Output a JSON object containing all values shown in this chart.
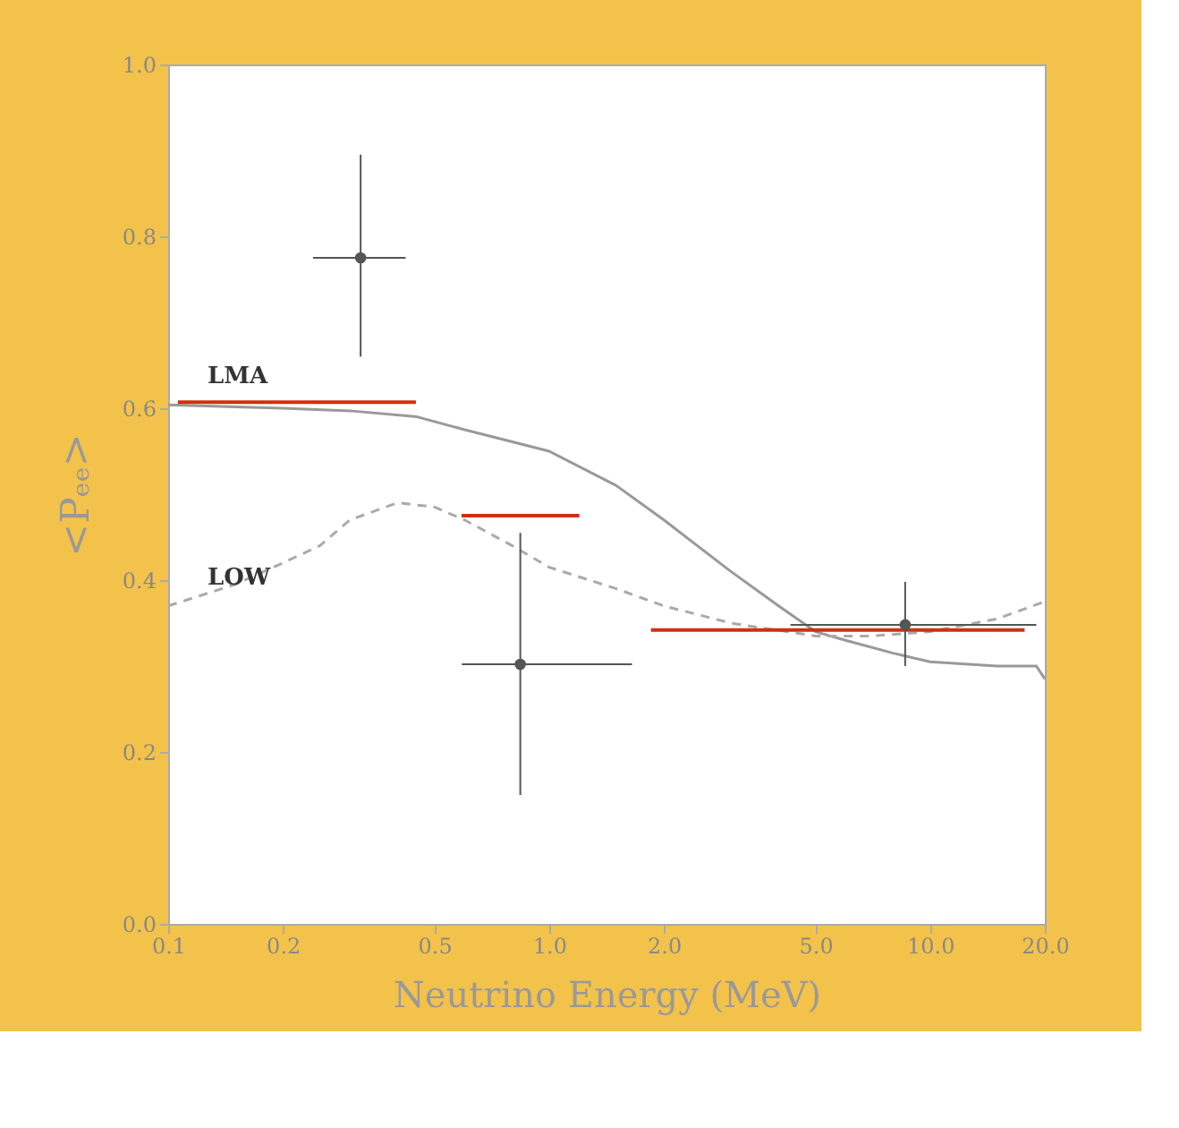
{
  "chart_data": {
    "type": "line",
    "xlabel": "Neutrino Energy (MeV)",
    "ylabel": "<Pₑₑ>",
    "log": "x",
    "grid": false,
    "xlim": [
      0.1,
      20
    ],
    "xticks": [
      0.1,
      0.2,
      0.5,
      {
        "value": 1,
        "label": "1.0"
      },
      {
        "value": 2,
        "label": "2.0"
      },
      {
        "value": 5,
        "label": "5.0"
      },
      {
        "value": 10,
        "label": "10.0"
      },
      {
        "value": 20,
        "label": "20.0"
      }
    ],
    "ylim": [
      0,
      1
    ],
    "yticks": [
      {
        "value": 0,
        "label": "0.0"
      },
      0.2,
      0.4,
      0.6,
      0.8,
      {
        "value": 1,
        "label": "1.0"
      }
    ],
    "series": [
      {
        "name": "LMA",
        "line_style": "solid",
        "color": "#999999",
        "x": [
          0.1,
          0.2,
          0.3,
          0.45,
          0.6,
          1.0,
          1.5,
          2.0,
          3.0,
          4.0,
          5.0,
          6.0,
          8.0,
          10.0,
          15.0,
          19.0,
          20.0
        ],
        "values": [
          0.604,
          0.6,
          0.597,
          0.59,
          0.575,
          0.55,
          0.51,
          0.47,
          0.41,
          0.37,
          0.34,
          0.33,
          0.315,
          0.305,
          0.3,
          0.3,
          0.285
        ]
      },
      {
        "name": "LOW",
        "line_style": "dashed",
        "color": "#aaaaaa",
        "x": [
          0.1,
          0.15,
          0.2,
          0.25,
          0.3,
          0.4,
          0.5,
          0.6,
          0.8,
          1.0,
          1.5,
          2.0,
          3.0,
          5.0,
          7.0,
          10.0,
          15.0,
          20.0
        ],
        "values": [
          0.37,
          0.395,
          0.42,
          0.44,
          0.47,
          0.49,
          0.485,
          0.47,
          0.44,
          0.415,
          0.39,
          0.37,
          0.35,
          0.335,
          0.335,
          0.34,
          0.355,
          0.375
        ]
      },
      {
        "line_style": "solid",
        "color": "#d03010",
        "x": [
          0.106,
          0.447
        ],
        "values": [
          0.607,
          0.607
        ]
      },
      {
        "line_style": "solid",
        "color": "#d03010",
        "x": [
          0.589,
          1.2
        ],
        "values": [
          0.475,
          0.475
        ]
      },
      {
        "line_style": "solid",
        "color": "#d03010",
        "x": [
          1.85,
          17.7
        ],
        "values": [
          0.342,
          0.342
        ]
      },
      {
        "type": "scatter",
        "marker": "circle",
        "color": "#555555",
        "x": [
          0.32,
          0.84,
          8.6
        ],
        "values": [
          0.775,
          0.302,
          0.348
        ],
        "errors": [
          [
            0.66,
            0.895
          ],
          [
            0.15,
            0.455
          ],
          [
            0.3,
            0.398
          ]
        ],
        "xerrors": [
          [
            0.24,
            0.42
          ],
          [
            0.59,
            1.65
          ],
          [
            4.3,
            19.0
          ]
        ]
      }
    ]
  }
}
